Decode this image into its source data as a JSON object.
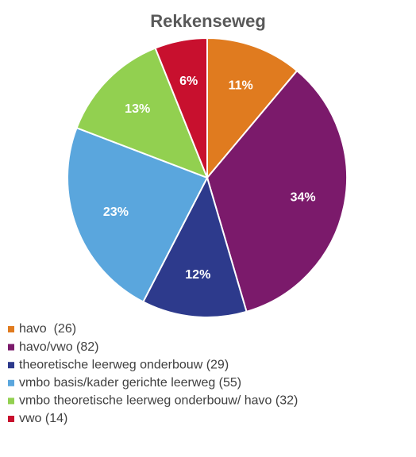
{
  "chart_data": {
    "type": "pie",
    "title": "Rekkenseweg",
    "categories": [
      "havo  (26)",
      "havo/vwo (82)",
      "theoretische leerweg onderbouw (29)",
      "vmbo basis/kader gerichte leerweg (55)",
      "vmbo theoretische leerweg onderbouw/ havo (32)",
      "vwo (14)"
    ],
    "values": [
      11,
      34,
      12,
      23,
      13,
      6
    ],
    "value_labels": [
      "11%",
      "34%",
      "12%",
      "23%",
      "13%",
      "6%"
    ],
    "colors": [
      "#e07b1f",
      "#7b1a6b",
      "#2d3a8c",
      "#5aa6dd",
      "#92d050",
      "#c8102e"
    ],
    "legend": "bottom"
  }
}
